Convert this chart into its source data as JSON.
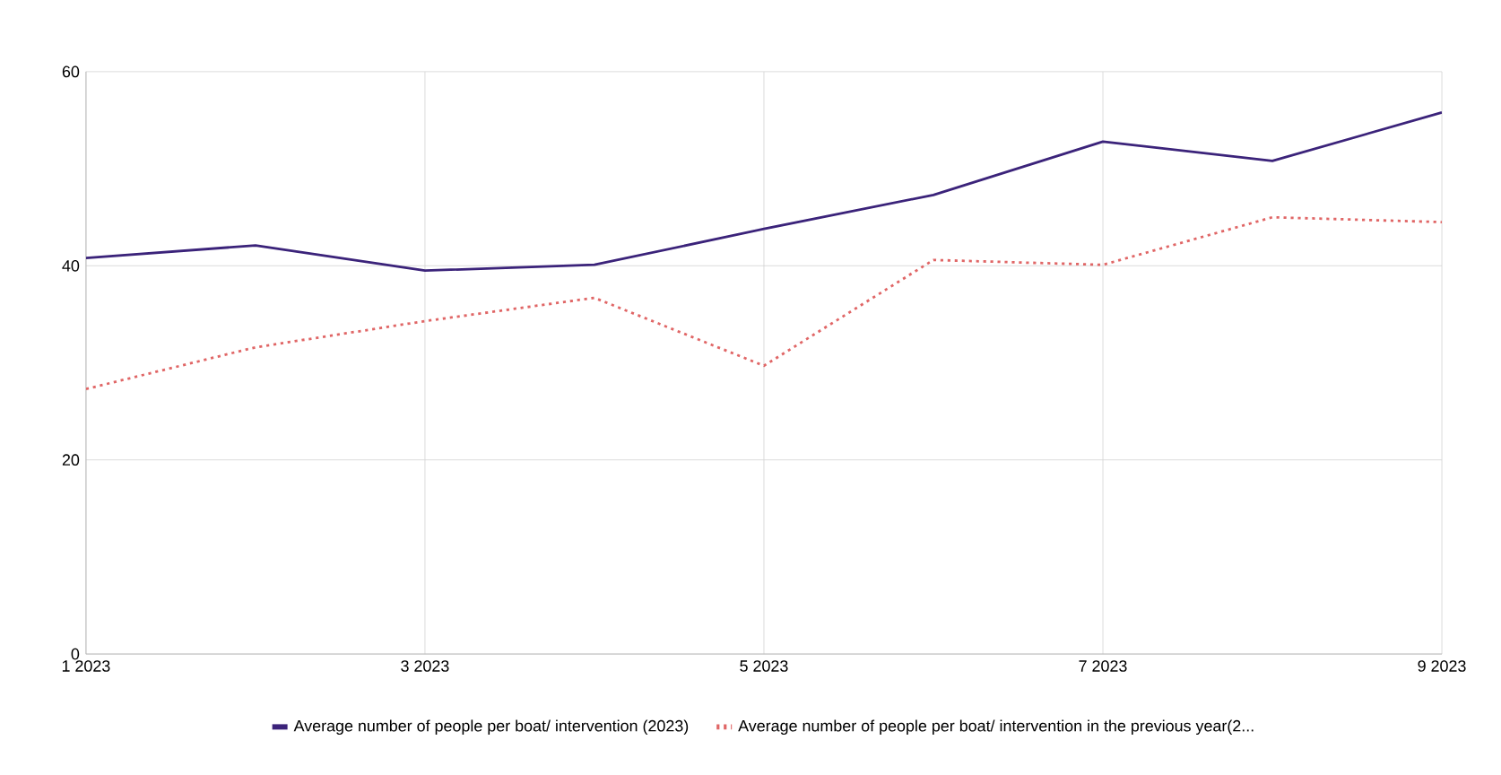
{
  "chart_data": {
    "type": "line",
    "categories": [
      "1 2023",
      null,
      "3 2023",
      null,
      "5 2023",
      null,
      "7 2023",
      null,
      "9 2023"
    ],
    "series": [
      {
        "name": "Average number of people per boat/ intervention (2023)",
        "color": "#3b237a",
        "line_style": "solid",
        "values": [
          40.8,
          42.1,
          39.5,
          40.1,
          43.8,
          47.3,
          52.8,
          50.8,
          55.8
        ]
      },
      {
        "name": "Average number of people per boat/ intervention in the previous year(2...",
        "color": "#e06666",
        "line_style": "dotted",
        "values": [
          27.3,
          31.6,
          34.3,
          36.7,
          29.7,
          40.6,
          40.1,
          45.0,
          44.5
        ]
      }
    ],
    "ylim": [
      0,
      60
    ],
    "yticks": [
      0,
      20,
      40,
      60
    ],
    "grid": true,
    "legend": "bottom",
    "marker": "none"
  }
}
